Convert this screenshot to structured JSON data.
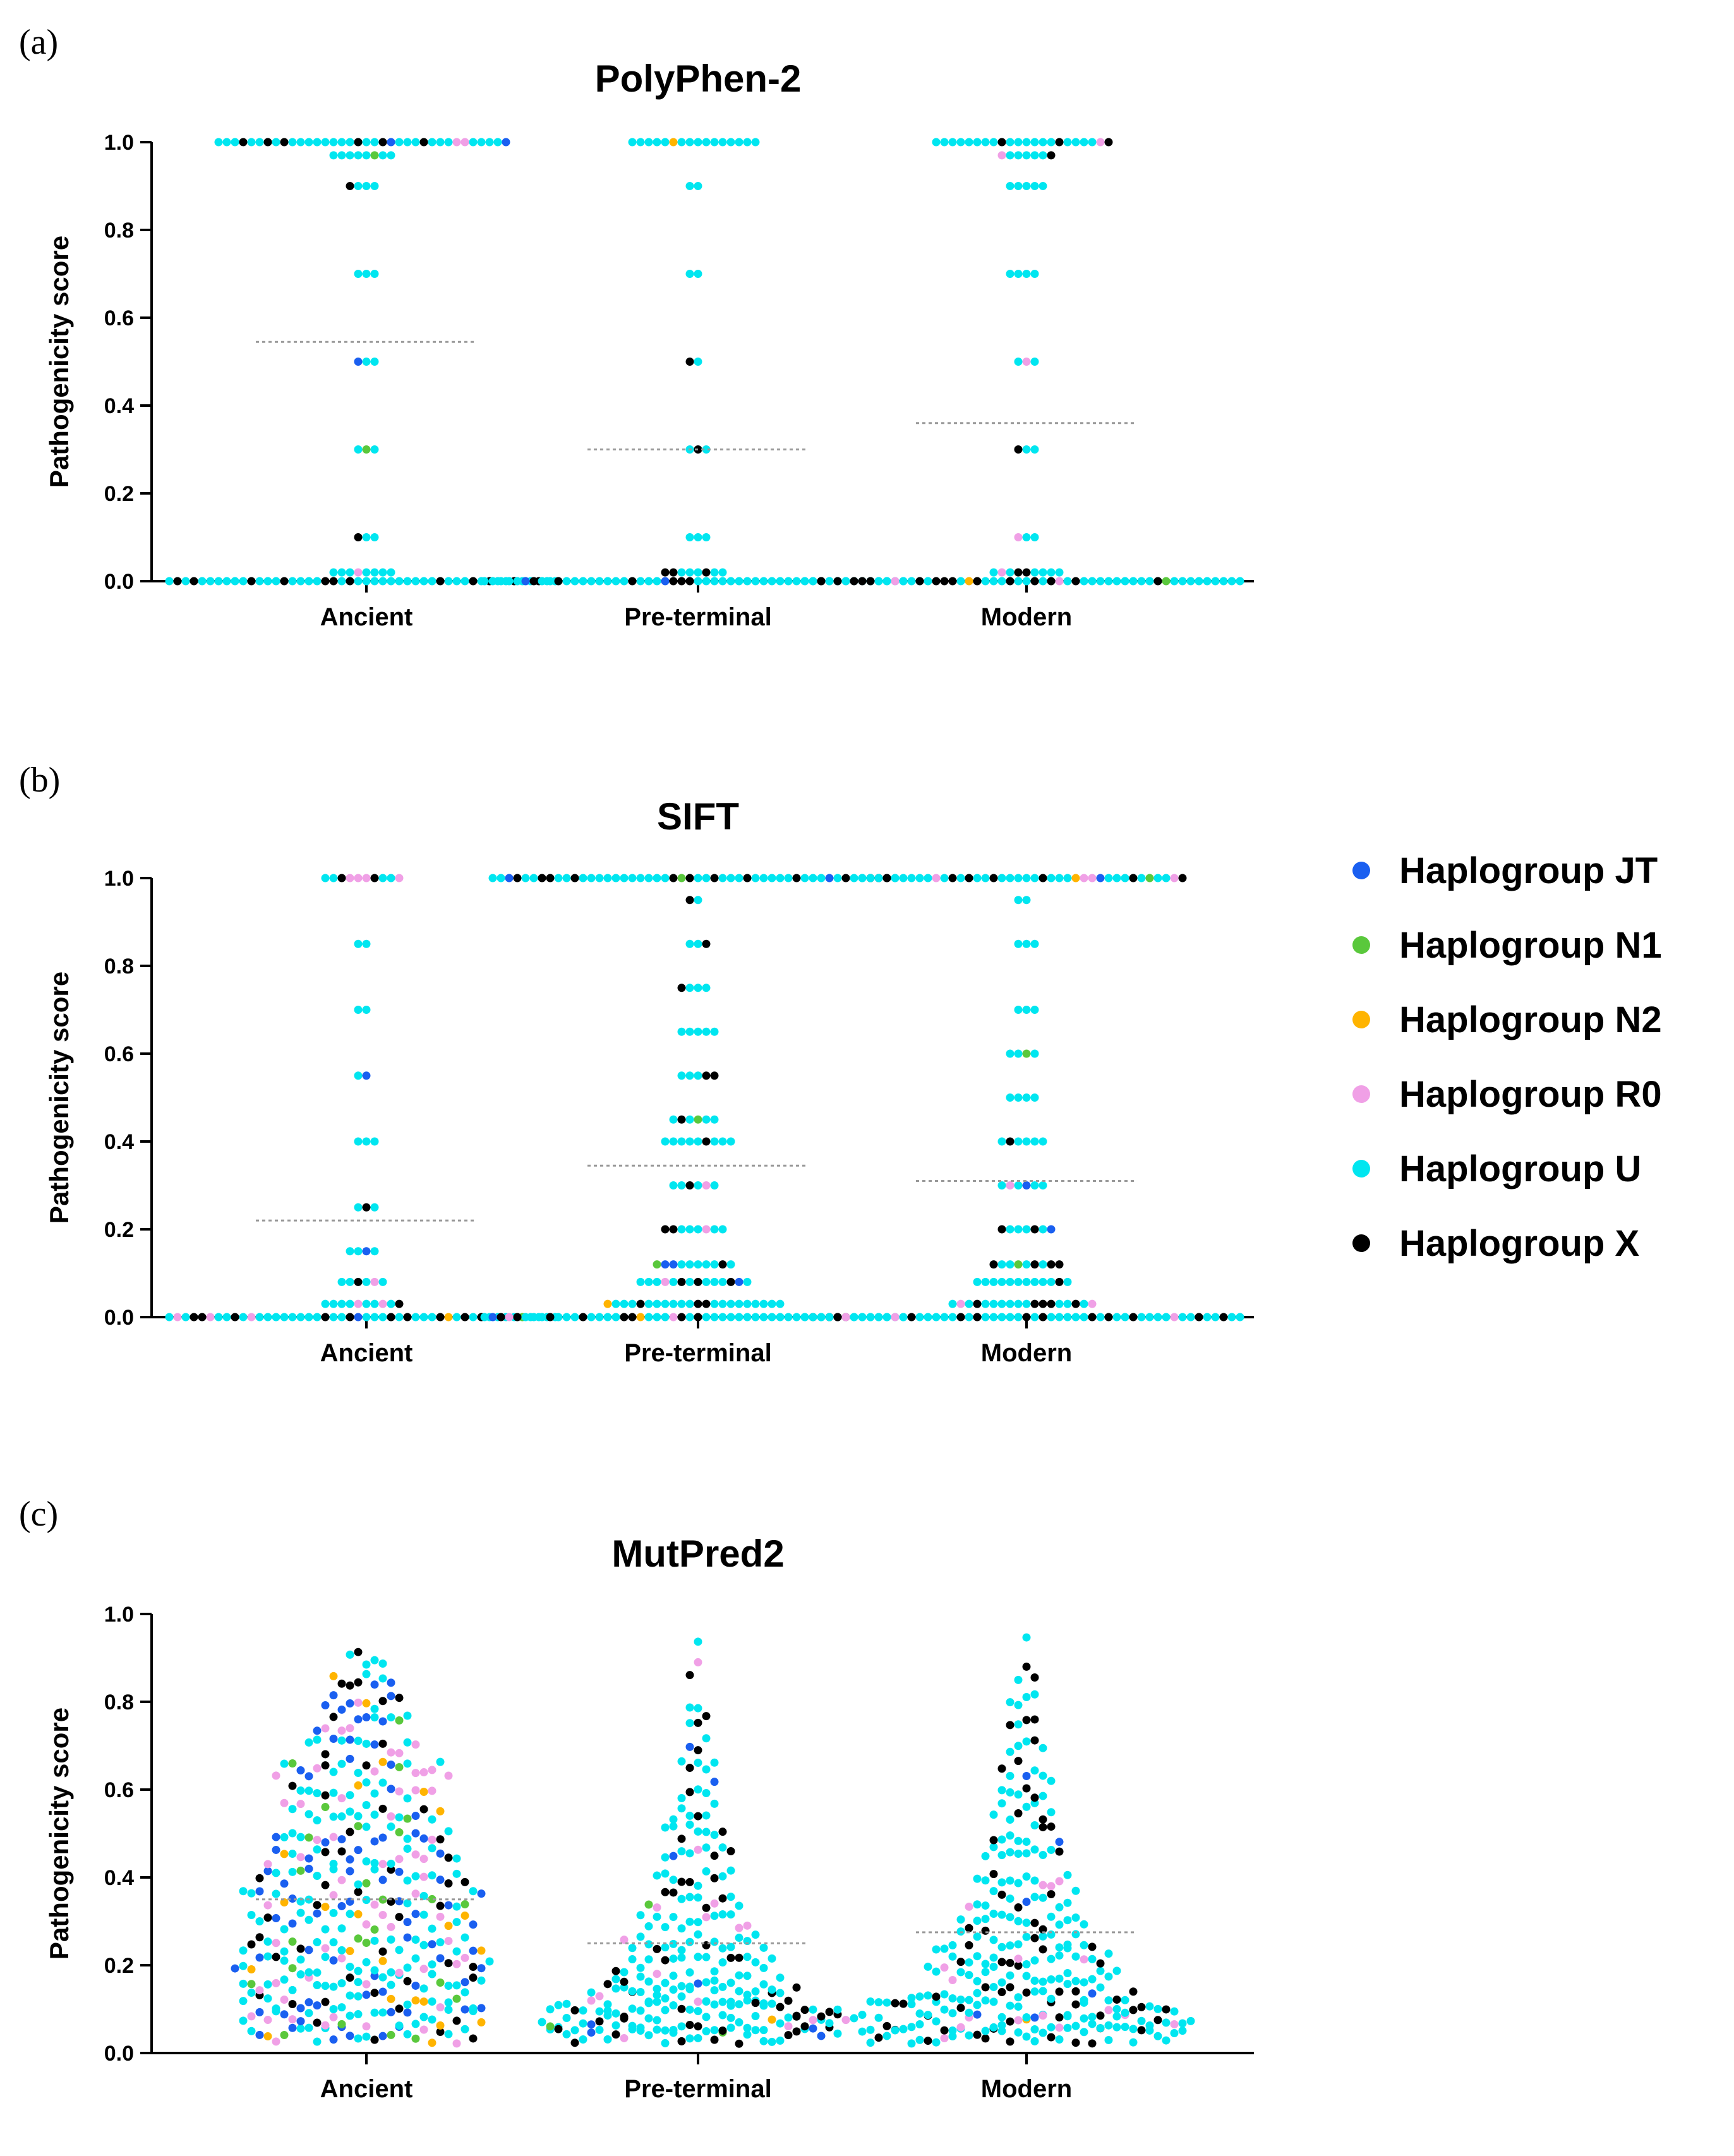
{
  "panels": [
    {
      "label": "(a)",
      "title": "PolyPhen-2"
    },
    {
      "label": "(b)",
      "title": "SIFT"
    },
    {
      "label": "(c)",
      "title": "MutPred2"
    }
  ],
  "legend": {
    "items": [
      {
        "label": "Haplogroup JT",
        "color": "#1a5ff0"
      },
      {
        "label": "Haplogroup N1",
        "color": "#5ac83c"
      },
      {
        "label": "Haplogroup N2",
        "color": "#ffb400"
      },
      {
        "label": "Haplogroup R0",
        "color": "#f0a0e6"
      },
      {
        "label": "Haplogroup U",
        "color": "#00e6f0"
      },
      {
        "label": "Haplogroup X",
        "color": "#000000"
      }
    ]
  },
  "chart_data": [
    {
      "type": "scatter",
      "subtype": "beeswarm",
      "title": "PolyPhen-2",
      "xlabel": "",
      "ylabel": "Pathogenicity score",
      "categories": [
        "Ancient",
        "Pre-terminal",
        "Modern"
      ],
      "ylim": [
        0,
        1.0
      ],
      "yticks": [
        "0.0",
        "0.2",
        "0.4",
        "0.6",
        "0.8",
        "1.0"
      ],
      "means": [
        0.545,
        0.3,
        0.36
      ],
      "distribution": [
        {
          "category": "Ancient",
          "bins": [
            [
              0.0,
              48
            ],
            [
              0.02,
              8
            ],
            [
              0.1,
              3
            ],
            [
              0.3,
              3
            ],
            [
              0.5,
              3
            ],
            [
              0.7,
              3
            ],
            [
              0.9,
              4
            ],
            [
              0.97,
              8
            ],
            [
              1.0,
              36
            ]
          ]
        },
        {
          "category": "Pre-terminal",
          "bins": [
            [
              0.0,
              52
            ],
            [
              0.02,
              8
            ],
            [
              0.1,
              3
            ],
            [
              0.3,
              3
            ],
            [
              0.5,
              2
            ],
            [
              0.7,
              2
            ],
            [
              0.9,
              2
            ],
            [
              1.0,
              16
            ]
          ]
        },
        {
          "category": "Modern",
          "bins": [
            [
              0.0,
              54
            ],
            [
              0.02,
              9
            ],
            [
              0.1,
              3
            ],
            [
              0.3,
              3
            ],
            [
              0.5,
              3
            ],
            [
              0.7,
              4
            ],
            [
              0.9,
              5
            ],
            [
              0.97,
              7
            ],
            [
              1.0,
              22
            ]
          ]
        }
      ]
    },
    {
      "type": "scatter",
      "subtype": "beeswarm",
      "title": "SIFT",
      "xlabel": "",
      "ylabel": "Pathogenicity score",
      "categories": [
        "Ancient",
        "Pre-terminal",
        "Modern"
      ],
      "ylim": [
        0,
        1.0
      ],
      "yticks": [
        "0.0",
        "0.2",
        "0.4",
        "0.6",
        "0.8",
        "1.0"
      ],
      "means": [
        0.22,
        0.345,
        0.31
      ],
      "distribution": [
        {
          "category": "Ancient",
          "bins": [
            [
              0.0,
              48
            ],
            [
              0.03,
              10
            ],
            [
              0.08,
              6
            ],
            [
              0.15,
              4
            ],
            [
              0.25,
              3
            ],
            [
              0.4,
              3
            ],
            [
              0.55,
              2
            ],
            [
              0.7,
              2
            ],
            [
              0.85,
              2
            ],
            [
              1.0,
              10
            ]
          ]
        },
        {
          "category": "Pre-terminal",
          "bins": [
            [
              0.0,
              52
            ],
            [
              0.03,
              22
            ],
            [
              0.08,
              14
            ],
            [
              0.12,
              10
            ],
            [
              0.2,
              8
            ],
            [
              0.3,
              6
            ],
            [
              0.4,
              9
            ],
            [
              0.45,
              6
            ],
            [
              0.55,
              5
            ],
            [
              0.65,
              5
            ],
            [
              0.75,
              4
            ],
            [
              0.85,
              3
            ],
            [
              0.95,
              2
            ],
            [
              1.0,
              50
            ]
          ]
        },
        {
          "category": "Modern",
          "bins": [
            [
              0.0,
              54
            ],
            [
              0.03,
              18
            ],
            [
              0.08,
              12
            ],
            [
              0.12,
              9
            ],
            [
              0.2,
              7
            ],
            [
              0.3,
              6
            ],
            [
              0.4,
              6
            ],
            [
              0.5,
              4
            ],
            [
              0.6,
              4
            ],
            [
              0.7,
              3
            ],
            [
              0.85,
              3
            ],
            [
              0.95,
              2
            ],
            [
              1.0,
              40
            ]
          ]
        }
      ]
    },
    {
      "type": "scatter",
      "subtype": "beeswarm",
      "title": "MutPred2",
      "xlabel": "",
      "ylabel": "Pathogenicity score",
      "categories": [
        "Ancient",
        "Pre-terminal",
        "Modern"
      ],
      "ylim": [
        0,
        1.0
      ],
      "yticks": [
        "0.0",
        "0.2",
        "0.4",
        "0.6",
        "0.8",
        "1.0"
      ],
      "means": [
        0.35,
        0.25,
        0.275
      ],
      "distribution": [
        {
          "category": "Ancient",
          "bins": [
            [
              0.04,
              28
            ],
            [
              0.08,
              30
            ],
            [
              0.12,
              30
            ],
            [
              0.16,
              30
            ],
            [
              0.2,
              32
            ],
            [
              0.25,
              30
            ],
            [
              0.3,
              28
            ],
            [
              0.35,
              30
            ],
            [
              0.4,
              26
            ],
            [
              0.45,
              24
            ],
            [
              0.5,
              22
            ],
            [
              0.55,
              20
            ],
            [
              0.6,
              18
            ],
            [
              0.65,
              22
            ],
            [
              0.7,
              14
            ],
            [
              0.75,
              12
            ],
            [
              0.8,
              10
            ],
            [
              0.85,
              8
            ],
            [
              0.9,
              5
            ]
          ]
        },
        {
          "category": "Pre-terminal",
          "bins": [
            [
              0.04,
              36
            ],
            [
              0.07,
              38
            ],
            [
              0.1,
              36
            ],
            [
              0.13,
              26
            ],
            [
              0.16,
              22
            ],
            [
              0.2,
              20
            ],
            [
              0.25,
              18
            ],
            [
              0.3,
              14
            ],
            [
              0.35,
              12
            ],
            [
              0.4,
              10
            ],
            [
              0.45,
              9
            ],
            [
              0.5,
              8
            ],
            [
              0.55,
              6
            ],
            [
              0.6,
              5
            ],
            [
              0.65,
              5
            ],
            [
              0.7,
              3
            ],
            [
              0.75,
              3
            ],
            [
              0.8,
              2
            ],
            [
              0.87,
              2
            ],
            [
              0.92,
              1
            ]
          ]
        },
        {
          "category": "Modern",
          "bins": [
            [
              0.04,
              40
            ],
            [
              0.07,
              42
            ],
            [
              0.1,
              38
            ],
            [
              0.14,
              28
            ],
            [
              0.18,
              24
            ],
            [
              0.22,
              22
            ],
            [
              0.26,
              18
            ],
            [
              0.3,
              16
            ],
            [
              0.35,
              14
            ],
            [
              0.4,
              12
            ],
            [
              0.45,
              10
            ],
            [
              0.5,
              9
            ],
            [
              0.55,
              8
            ],
            [
              0.6,
              7
            ],
            [
              0.65,
              6
            ],
            [
              0.7,
              5
            ],
            [
              0.75,
              4
            ],
            [
              0.8,
              4
            ],
            [
              0.87,
              3
            ],
            [
              0.94,
              1
            ]
          ]
        }
      ]
    }
  ]
}
